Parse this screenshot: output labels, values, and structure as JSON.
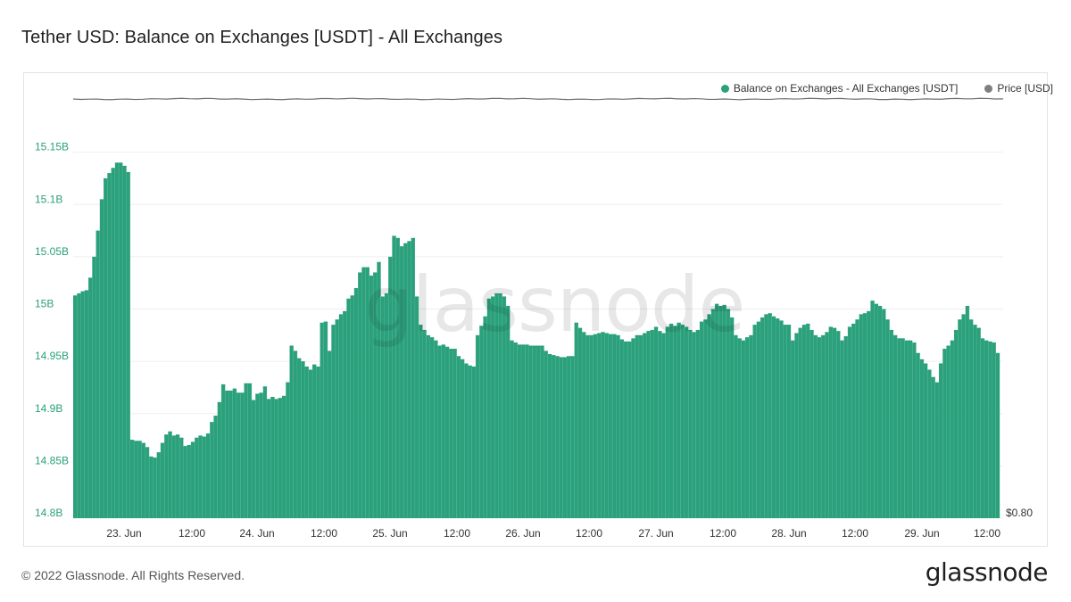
{
  "title": "Tether USD: Balance on Exchanges [USDT] - All Exchanges",
  "legend": [
    {
      "label": "Balance on Exchanges - All Exchanges [USDT]",
      "color": "#2aa07b"
    },
    {
      "label": "Price [USD]",
      "color": "#7f7f7f"
    }
  ],
  "watermark": "glassnode",
  "footer": {
    "copyright": "© 2022 Glassnode. All Rights Reserved.",
    "logo": "glassnode"
  },
  "colors": {
    "bars": "#2aa07b",
    "price_line": "#6f6f6f",
    "left_axis_text": "#2aa07b",
    "right_axis_text": "#333333",
    "grid": "#efefef"
  },
  "chart_data": {
    "type": "area",
    "title": "Tether USD: Balance on Exchanges [USDT] - All Exchanges",
    "xlabel": "",
    "ylabel": "",
    "x_tick_labels": [
      "23. Jun",
      "12:00",
      "24. Jun",
      "12:00",
      "25. Jun",
      "12:00",
      "26. Jun",
      "12:00",
      "27. Jun",
      "12:00",
      "28. Jun",
      "12:00",
      "29. Jun",
      "12:00"
    ],
    "x_range": [
      "22 Jun 15:00",
      "29 Jun 16:00"
    ],
    "y_tick_labels": [
      "14.8B",
      "14.85B",
      "14.9B",
      "14.95B",
      "15B",
      "15.05B",
      "15.1B",
      "15.15B"
    ],
    "ylim": [
      14.8,
      15.2
    ],
    "y_unit": "B USDT",
    "right_axis_label": "$0.80",
    "grid": "horizontal",
    "legend_position": "top-right",
    "series": [
      {
        "name": "Balance on Exchanges - All Exchanges [USDT]",
        "kind": "bars",
        "time_step_hours": 1,
        "start": "22 Jun 15:00",
        "values": [
          15.013,
          15.015,
          15.017,
          15.018,
          15.03,
          15.05,
          15.075,
          15.105,
          15.125,
          15.13,
          15.135,
          15.14,
          15.14,
          15.137,
          15.131,
          14.875,
          14.874,
          14.874,
          14.872,
          14.868,
          14.859,
          14.858,
          14.863,
          14.872,
          14.88,
          14.883,
          14.879,
          14.88,
          14.877,
          14.869,
          14.87,
          14.873,
          14.877,
          14.879,
          14.878,
          14.881,
          14.892,
          14.898,
          14.911,
          14.928,
          14.922,
          14.922,
          14.924,
          14.92,
          14.92,
          14.929,
          14.929,
          14.913,
          14.919,
          14.92,
          14.926,
          14.914,
          14.916,
          14.914,
          14.915,
          14.917,
          14.93,
          14.965,
          14.96,
          14.953,
          14.95,
          14.945,
          14.942,
          14.947,
          14.945,
          14.987,
          14.988,
          14.96,
          14.985,
          14.99,
          14.995,
          14.998,
          15.01,
          15.013,
          15.02,
          15.035,
          15.04,
          15.04,
          15.032,
          15.035,
          15.045,
          15.012,
          15.015,
          15.05,
          15.07,
          15.068,
          15.06,
          15.063,
          15.065,
          15.068,
          15.012,
          14.985,
          14.98,
          14.975,
          14.973,
          14.97,
          14.965,
          14.966,
          14.964,
          14.962,
          14.962,
          14.955,
          14.952,
          14.948,
          14.946,
          14.945,
          14.975,
          14.984,
          14.993,
          15.01,
          15.012,
          15.015,
          15.015,
          15.012,
          15.003,
          14.97,
          14.968,
          14.966,
          14.966,
          14.966,
          14.965,
          14.965,
          14.965,
          14.965,
          14.96,
          14.957,
          14.956,
          14.955,
          14.954,
          14.954,
          14.955,
          14.955,
          14.987,
          14.982,
          14.978,
          14.975,
          14.975,
          14.976,
          14.977,
          14.978,
          14.977,
          14.976,
          14.976,
          14.975,
          14.971,
          14.969,
          14.969,
          14.972,
          14.975,
          14.975,
          14.977,
          14.979,
          14.98,
          14.983,
          14.979,
          14.977,
          14.983,
          14.986,
          14.984,
          14.987,
          14.985,
          14.983,
          14.98,
          14.978,
          14.98,
          14.988,
          14.99,
          14.995,
          15.0,
          15.005,
          15.003,
          15.004,
          15.0,
          14.992,
          14.975,
          14.972,
          14.97,
          14.973,
          14.975,
          14.985,
          14.988,
          14.992,
          14.995,
          14.996,
          14.993,
          14.991,
          14.989,
          14.985,
          14.985,
          14.97,
          14.977,
          14.982,
          14.985,
          14.986,
          14.98,
          14.975,
          14.973,
          14.975,
          14.978,
          14.983,
          14.982,
          14.979,
          14.97,
          14.974,
          14.983,
          14.986,
          14.99,
          14.995,
          14.996,
          14.998,
          15.008,
          15.005,
          15.003,
          15.0,
          14.99,
          14.98,
          14.975,
          14.972,
          14.972,
          14.97,
          14.97,
          14.968,
          14.958,
          14.952,
          14.948,
          14.942,
          14.935,
          14.93,
          14.948,
          14.962,
          14.965,
          14.97,
          14.98,
          14.99,
          14.995,
          15.003,
          14.99,
          14.985,
          14.982,
          14.972,
          14.97,
          14.969,
          14.968,
          14.958
        ]
      },
      {
        "name": "Price [USD]",
        "kind": "line",
        "note_value": 1.0,
        "values_approx": "flat near 1.00"
      }
    ]
  }
}
